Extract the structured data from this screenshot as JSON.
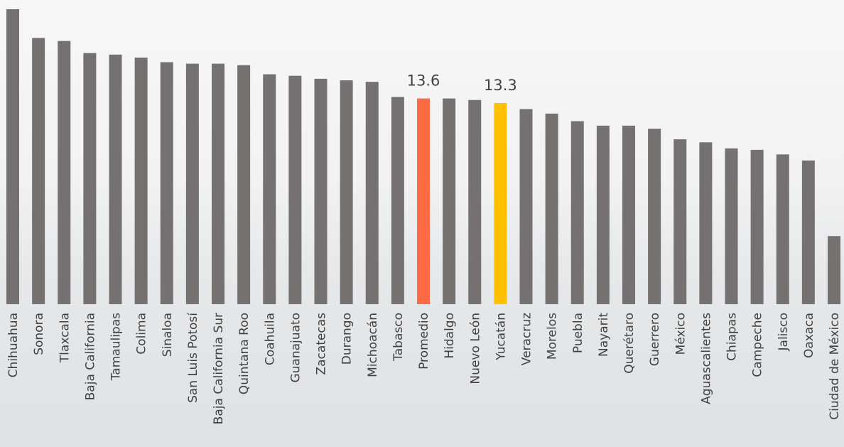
{
  "chart_data": {
    "type": "bar",
    "categories": [
      "Chihuahua",
      "Sonora",
      "Tlaxcala",
      "Baja California",
      "Tamaulipas",
      "Colima",
      "Sinaloa",
      "San Luis Potosí",
      "Baja California Sur",
      "Quintana Roo",
      "Coahuila",
      "Guanajuato",
      "Zacatecas",
      "Durango",
      "Michoacán",
      "Tabasco",
      "Promedio",
      "Hidalgo",
      "Nuevo León",
      "Yucatán",
      "Veracruz",
      "Morelos",
      "Puebla",
      "Nayarit",
      "Querétaro",
      "Guerrero",
      "México",
      "Aguascalientes",
      "Chiapas",
      "Campeche",
      "Jalisco",
      "Oaxaca",
      "Ciudad de México"
    ],
    "values": [
      19.5,
      17.6,
      17.4,
      16.6,
      16.5,
      16.3,
      16.0,
      15.9,
      15.9,
      15.8,
      15.2,
      15.1,
      14.9,
      14.8,
      14.7,
      13.7,
      13.6,
      13.6,
      13.5,
      13.3,
      12.9,
      12.6,
      12.1,
      11.8,
      11.8,
      11.6,
      10.9,
      10.7,
      10.3,
      10.2,
      9.9,
      9.5,
      4.5
    ],
    "value_labels": [
      null,
      null,
      null,
      null,
      null,
      null,
      null,
      null,
      null,
      null,
      null,
      null,
      null,
      null,
      null,
      null,
      "13.6",
      null,
      null,
      "13.3",
      null,
      null,
      null,
      null,
      null,
      null,
      null,
      null,
      null,
      null,
      null,
      null,
      null
    ],
    "colors": [
      "#767171",
      "#767171",
      "#767171",
      "#767171",
      "#767171",
      "#767171",
      "#767171",
      "#767171",
      "#767171",
      "#767171",
      "#767171",
      "#767171",
      "#767171",
      "#767171",
      "#767171",
      "#767171",
      "#ff6a45",
      "#767171",
      "#767171",
      "#ffc000",
      "#767171",
      "#767171",
      "#767171",
      "#767171",
      "#767171",
      "#767171",
      "#767171",
      "#767171",
      "#767171",
      "#767171",
      "#767171",
      "#767171",
      "#767171"
    ]
  }
}
